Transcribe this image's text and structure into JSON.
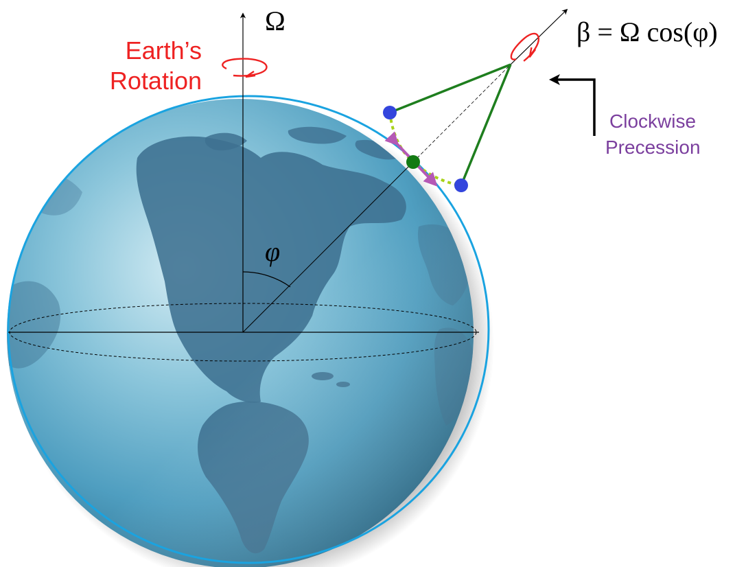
{
  "labels": {
    "omega": "Ω",
    "earth_rotation_line1": "Earth’s",
    "earth_rotation_line2": "Rotation",
    "latitude_angle": "φ",
    "precession_formula": "β = Ω cos(φ)",
    "clockwise_line1": "Clockwise",
    "clockwise_line2": "Precession"
  },
  "colors": {
    "earth_outline": "#1aa3e0",
    "earth_light": "#cfe8f1",
    "earth_mid": "#5aaac8",
    "earth_dark": "#2d6e8e",
    "continents": "#3e7191",
    "rotation_label": "#ee2222",
    "precession_label": "#7b3f9e",
    "pendulum_rod": "#1e7e1e",
    "pendulum_bob": "#3345dd",
    "pivot_bob": "#137a13",
    "swing_path": "#a8d21a",
    "precession_arrow": "#b559b5",
    "axis_lines": "#000000"
  }
}
